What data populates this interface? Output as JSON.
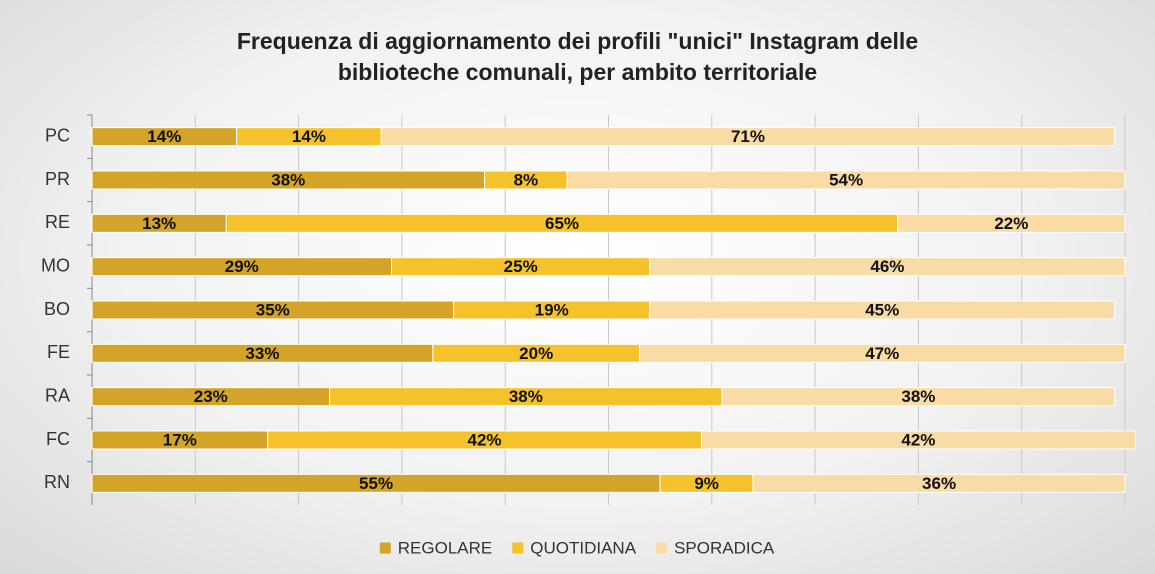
{
  "chart_data": {
    "type": "stacked-barh",
    "title": "Frequenza di aggiornamento dei profili \"unici\" Instagram delle biblioteche comunali, per ambito territoriale",
    "categories": [
      "PC",
      "PR",
      "RE",
      "MO",
      "BO",
      "FE",
      "RA",
      "FC",
      "RN"
    ],
    "series": [
      {
        "name": "REGOLARE",
        "color": "#d4a428",
        "values": [
          14,
          38,
          13,
          29,
          35,
          33,
          23,
          17,
          55
        ],
        "value_labels": [
          "14%",
          "38%",
          "13%",
          "29%",
          "35%",
          "33%",
          "23%",
          "17%",
          "55%"
        ]
      },
      {
        "name": "QUOTIDIANA",
        "color": "#f6c22c",
        "values": [
          14,
          8,
          65,
          25,
          19,
          20,
          38,
          42,
          9
        ],
        "value_labels": [
          "14%",
          "8%",
          "65%",
          "25%",
          "19%",
          "20%",
          "38%",
          "42%",
          "9%"
        ]
      },
      {
        "name": "SPORADICA",
        "color": "#f9dba5",
        "values": [
          71,
          54,
          22,
          46,
          45,
          47,
          38,
          42,
          36
        ],
        "value_labels": [
          "71%",
          "54%",
          "22%",
          "46%",
          "45%",
          "47%",
          "38%",
          "42%",
          "36%"
        ]
      }
    ],
    "xlim": [
      0,
      100
    ],
    "xticks": [
      0,
      10,
      20,
      30,
      40,
      50,
      60,
      70,
      80,
      90,
      100
    ],
    "grid": true,
    "legend": "bottom"
  }
}
